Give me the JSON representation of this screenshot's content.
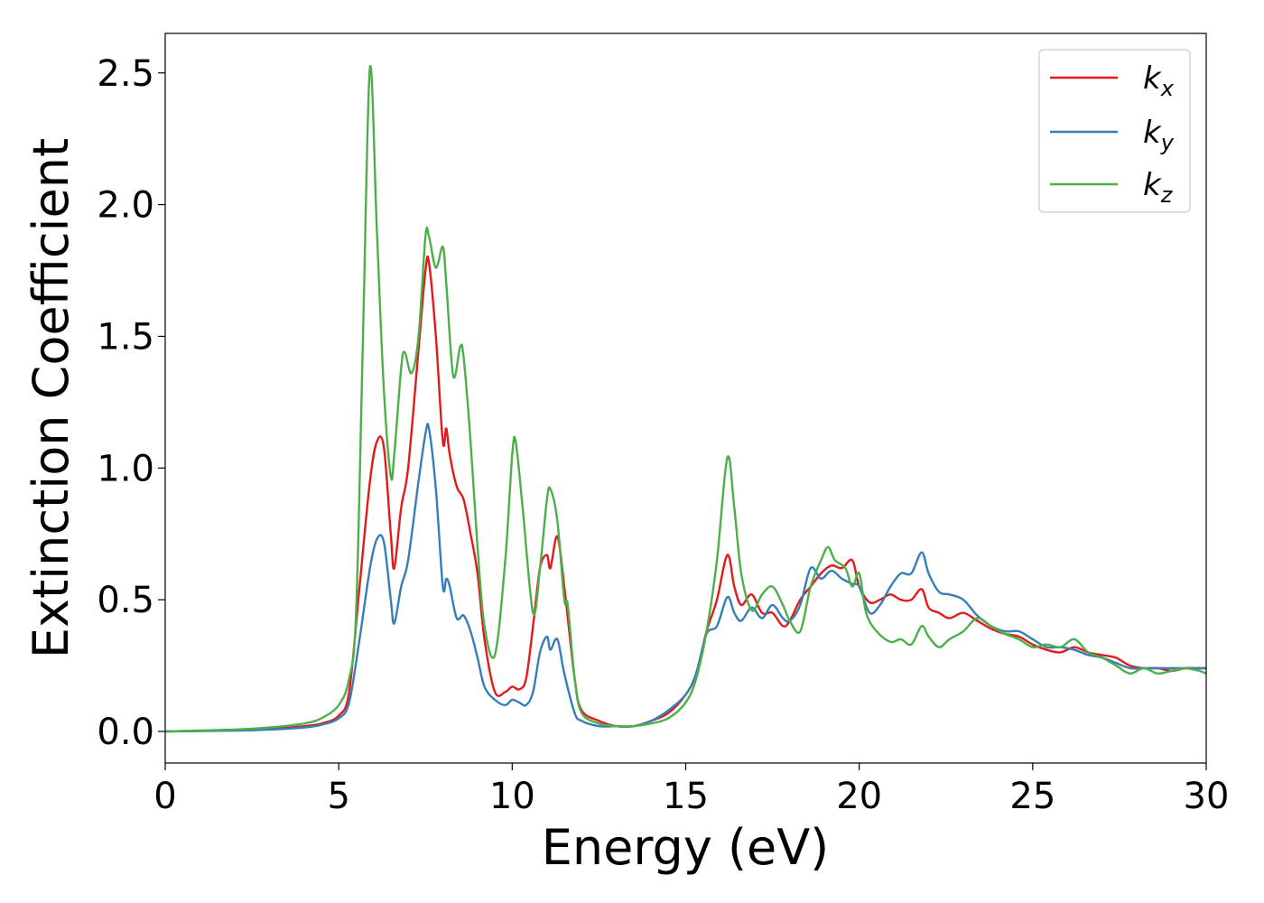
{
  "chart_data": {
    "type": "line",
    "title": "",
    "xlabel": "Energy (eV)",
    "ylabel": "Extinction Coefficient",
    "xlim": [
      0,
      30
    ],
    "ylim": [
      -0.12,
      2.65
    ],
    "xticks": [
      0,
      5,
      10,
      15,
      20,
      25,
      30
    ],
    "xtick_labels": [
      "0",
      "5",
      "10",
      "15",
      "20",
      "25",
      "30"
    ],
    "yticks": [
      0.0,
      0.5,
      1.0,
      1.5,
      2.0,
      2.5
    ],
    "ytick_labels": [
      "0.0",
      "0.5",
      "1.0",
      "1.5",
      "2.0",
      "2.5"
    ],
    "grid": false,
    "legend": {
      "position": "top-right"
    },
    "series": [
      {
        "name": "k",
        "subscript": "x",
        "color": "#e31a1c",
        "x": [
          0,
          2,
          3,
          4,
          4.5,
          5,
          5.3,
          5.6,
          5.9,
          6.1,
          6.3,
          6.5,
          6.6,
          6.8,
          7.0,
          7.3,
          7.5,
          7.6,
          7.8,
          8.0,
          8.1,
          8.2,
          8.4,
          8.6,
          8.8,
          9.0,
          9.2,
          9.5,
          9.8,
          10.0,
          10.2,
          10.4,
          10.6,
          10.8,
          11.0,
          11.1,
          11.3,
          11.5,
          11.8,
          12.0,
          12.5,
          13.0,
          13.5,
          14.0,
          14.5,
          15.0,
          15.3,
          15.6,
          15.9,
          16.2,
          16.4,
          16.6,
          16.9,
          17.2,
          17.5,
          17.8,
          18.0,
          18.3,
          18.6,
          18.9,
          19.2,
          19.5,
          19.8,
          20.0,
          20.3,
          20.6,
          20.9,
          21.2,
          21.5,
          21.8,
          22.0,
          22.3,
          22.6,
          23.0,
          23.4,
          23.8,
          24.2,
          24.6,
          25.0,
          25.4,
          25.8,
          26.2,
          26.6,
          27.0,
          27.4,
          27.8,
          28.2,
          28.6,
          29.0,
          29.4,
          29.8,
          30.0
        ],
        "y": [
          0.0,
          0.005,
          0.01,
          0.02,
          0.03,
          0.06,
          0.15,
          0.55,
          0.95,
          1.1,
          1.08,
          0.75,
          0.62,
          0.85,
          1.0,
          1.45,
          1.75,
          1.78,
          1.5,
          1.1,
          1.15,
          1.05,
          0.93,
          0.88,
          0.75,
          0.6,
          0.35,
          0.15,
          0.15,
          0.17,
          0.16,
          0.2,
          0.4,
          0.62,
          0.67,
          0.62,
          0.74,
          0.55,
          0.2,
          0.08,
          0.04,
          0.02,
          0.02,
          0.04,
          0.07,
          0.14,
          0.22,
          0.38,
          0.5,
          0.67,
          0.55,
          0.48,
          0.52,
          0.45,
          0.45,
          0.4,
          0.42,
          0.5,
          0.55,
          0.6,
          0.63,
          0.62,
          0.65,
          0.55,
          0.49,
          0.5,
          0.52,
          0.5,
          0.5,
          0.54,
          0.47,
          0.45,
          0.43,
          0.45,
          0.42,
          0.39,
          0.37,
          0.36,
          0.33,
          0.31,
          0.3,
          0.32,
          0.3,
          0.29,
          0.28,
          0.25,
          0.24,
          0.24,
          0.23,
          0.24,
          0.24,
          0.24
        ]
      },
      {
        "name": "k",
        "subscript": "y",
        "color": "#377eb8",
        "x": [
          0,
          2,
          3,
          4,
          4.5,
          5,
          5.3,
          5.6,
          5.9,
          6.1,
          6.3,
          6.5,
          6.6,
          6.8,
          7.0,
          7.3,
          7.5,
          7.6,
          7.8,
          8.0,
          8.1,
          8.2,
          8.4,
          8.6,
          8.8,
          9.0,
          9.2,
          9.5,
          9.8,
          10.0,
          10.2,
          10.4,
          10.6,
          10.8,
          11.0,
          11.1,
          11.3,
          11.5,
          11.8,
          12.0,
          12.5,
          13.0,
          13.5,
          14.0,
          14.5,
          15.0,
          15.3,
          15.6,
          15.9,
          16.2,
          16.4,
          16.6,
          16.9,
          17.2,
          17.5,
          17.8,
          18.0,
          18.3,
          18.6,
          18.9,
          19.2,
          19.5,
          19.8,
          20.0,
          20.3,
          20.6,
          20.9,
          21.2,
          21.5,
          21.8,
          22.0,
          22.3,
          22.6,
          23.0,
          23.4,
          23.8,
          24.2,
          24.6,
          25.0,
          25.4,
          25.8,
          26.2,
          26.6,
          27.0,
          27.4,
          27.8,
          28.2,
          28.6,
          29.0,
          29.4,
          29.8,
          30.0
        ],
        "y": [
          0.0,
          0.003,
          0.007,
          0.015,
          0.025,
          0.05,
          0.11,
          0.35,
          0.62,
          0.73,
          0.72,
          0.5,
          0.41,
          0.55,
          0.65,
          0.95,
          1.13,
          1.15,
          0.92,
          0.55,
          0.58,
          0.55,
          0.43,
          0.44,
          0.38,
          0.28,
          0.17,
          0.12,
          0.1,
          0.12,
          0.11,
          0.1,
          0.15,
          0.3,
          0.36,
          0.31,
          0.35,
          0.22,
          0.07,
          0.04,
          0.02,
          0.02,
          0.02,
          0.04,
          0.08,
          0.14,
          0.22,
          0.37,
          0.4,
          0.51,
          0.45,
          0.42,
          0.47,
          0.43,
          0.48,
          0.43,
          0.42,
          0.48,
          0.62,
          0.58,
          0.61,
          0.58,
          0.56,
          0.55,
          0.45,
          0.48,
          0.55,
          0.6,
          0.6,
          0.68,
          0.6,
          0.53,
          0.52,
          0.5,
          0.44,
          0.4,
          0.38,
          0.38,
          0.35,
          0.32,
          0.32,
          0.31,
          0.29,
          0.28,
          0.26,
          0.24,
          0.24,
          0.24,
          0.24,
          0.24,
          0.24,
          0.24
        ]
      },
      {
        "name": "k",
        "subscript": "z",
        "color": "#4daf4a",
        "x": [
          0,
          2,
          3,
          4,
          4.5,
          5,
          5.3,
          5.5,
          5.7,
          5.9,
          6.1,
          6.3,
          6.5,
          6.6,
          6.8,
          6.9,
          7.1,
          7.3,
          7.5,
          7.6,
          7.8,
          8.0,
          8.1,
          8.3,
          8.5,
          8.6,
          8.8,
          9.0,
          9.2,
          9.5,
          9.8,
          10.0,
          10.1,
          10.3,
          10.6,
          10.8,
          11.0,
          11.1,
          11.3,
          11.5,
          11.6,
          11.8,
          12.0,
          12.5,
          13.0,
          13.5,
          14.0,
          14.5,
          15.0,
          15.3,
          15.6,
          15.9,
          16.2,
          16.4,
          16.6,
          16.9,
          17.2,
          17.5,
          17.8,
          18.0,
          18.3,
          18.6,
          18.9,
          19.1,
          19.3,
          19.6,
          19.8,
          20.0,
          20.2,
          20.5,
          20.9,
          21.2,
          21.5,
          21.8,
          22.0,
          22.3,
          22.6,
          23.0,
          23.4,
          23.8,
          24.2,
          24.6,
          25.0,
          25.4,
          25.8,
          26.2,
          26.6,
          27.0,
          27.4,
          27.8,
          28.2,
          28.6,
          29.0,
          29.4,
          29.8,
          30.0
        ],
        "y": [
          0.0,
          0.007,
          0.015,
          0.03,
          0.05,
          0.1,
          0.2,
          0.45,
          1.5,
          2.52,
          1.9,
          1.3,
          0.97,
          1.05,
          1.38,
          1.44,
          1.36,
          1.5,
          1.88,
          1.88,
          1.76,
          1.84,
          1.7,
          1.35,
          1.46,
          1.42,
          1.1,
          0.7,
          0.4,
          0.29,
          0.65,
          1.05,
          1.1,
          0.85,
          0.45,
          0.62,
          0.88,
          0.92,
          0.8,
          0.5,
          0.48,
          0.2,
          0.07,
          0.03,
          0.02,
          0.02,
          0.03,
          0.05,
          0.11,
          0.2,
          0.38,
          0.65,
          1.04,
          0.85,
          0.6,
          0.46,
          0.52,
          0.55,
          0.48,
          0.42,
          0.38,
          0.55,
          0.65,
          0.7,
          0.65,
          0.62,
          0.55,
          0.6,
          0.45,
          0.38,
          0.34,
          0.35,
          0.33,
          0.4,
          0.36,
          0.32,
          0.35,
          0.38,
          0.43,
          0.4,
          0.37,
          0.35,
          0.32,
          0.33,
          0.32,
          0.35,
          0.3,
          0.28,
          0.25,
          0.22,
          0.24,
          0.22,
          0.23,
          0.24,
          0.23,
          0.22
        ]
      }
    ]
  }
}
